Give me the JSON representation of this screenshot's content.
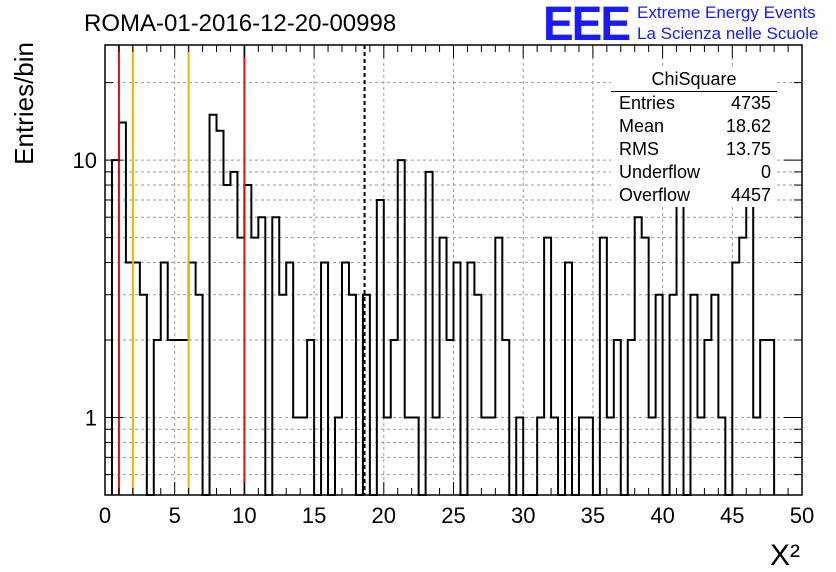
{
  "header": {
    "run_title": "ROMA-01-2016-12-20-00998",
    "logo_text": "EEE",
    "logo_line1": "Extreme Energy Events",
    "logo_line2": "La Scienza nelle Scuole",
    "logo_color": "#1a1aff"
  },
  "stats_box": {
    "title": "ChiSquare",
    "rows": [
      {
        "label": "Entries",
        "value": "4735"
      },
      {
        "label": "Mean",
        "value": "18.62"
      },
      {
        "label": "RMS",
        "value": "13.75"
      },
      {
        "label": "Underflow",
        "value": "0"
      },
      {
        "label": "Overflow",
        "value": "4457"
      }
    ]
  },
  "chart_data": {
    "type": "bar",
    "histogram_style": "step",
    "title": "ROMA-01-2016-12-20-00998",
    "xlabel": "X²",
    "ylabel": "Entries/bin",
    "x_scale": "linear",
    "y_scale": "log",
    "xlim": [
      0,
      50
    ],
    "ylim": [
      0.5,
      28
    ],
    "bin_width": 0.5,
    "x_ticks": [
      "0",
      "5",
      "10",
      "15",
      "20",
      "25",
      "30",
      "35",
      "40",
      "45",
      "50"
    ],
    "y_ticks": [
      "1",
      "10"
    ],
    "grid": true,
    "bin_lo": [
      0.5,
      1.0,
      1.5,
      2.0,
      2.5,
      3.0,
      3.5,
      4.0,
      4.5,
      5.0,
      5.5,
      6.0,
      6.5,
      7.0,
      7.5,
      8.0,
      8.5,
      9.0,
      9.5,
      10.0,
      10.5,
      11.0,
      11.5,
      12.0,
      12.5,
      13.0,
      13.5,
      14.0,
      14.5,
      15.0,
      15.5,
      16.0,
      16.5,
      17.0,
      17.5,
      18.0,
      18.5,
      19.0,
      19.5,
      20.0,
      20.5,
      21.0,
      21.5,
      22.0,
      22.5,
      23.0,
      23.5,
      24.0,
      24.5,
      25.0,
      25.5,
      26.0,
      26.5,
      27.0,
      27.5,
      28.0,
      28.5,
      29.0,
      29.5,
      30.0,
      30.5,
      31.0,
      31.5,
      32.0,
      32.5,
      33.0,
      33.5,
      34.0,
      34.5,
      35.0,
      35.5,
      36.0,
      36.5,
      37.0,
      37.5,
      38.0,
      38.5,
      39.0,
      39.5,
      40.0,
      40.5,
      41.0,
      41.5,
      42.0,
      42.5,
      43.0,
      43.5,
      44.0,
      44.5,
      45.0,
      45.5,
      46.0,
      46.5,
      47.0,
      47.5
    ],
    "values": [
      10,
      14,
      4,
      4,
      3,
      0,
      2,
      4,
      2,
      2,
      2,
      4,
      3,
      0,
      15,
      13,
      8,
      9,
      5,
      8,
      5,
      6,
      0,
      6,
      3,
      4,
      1,
      1,
      2,
      0,
      4,
      0,
      1,
      4,
      3,
      0,
      3,
      0,
      7,
      1,
      2,
      10,
      1,
      1,
      0,
      9,
      1,
      5,
      2,
      4,
      0,
      4,
      3,
      1,
      1,
      5,
      2,
      0,
      1,
      0,
      0,
      1,
      5,
      1,
      0,
      4,
      0,
      1,
      1,
      0,
      5,
      1,
      2,
      0,
      2,
      6,
      5,
      1,
      3,
      0,
      3,
      8,
      0,
      3,
      1,
      2,
      3,
      1,
      0,
      4,
      5,
      8,
      1,
      2,
      2
    ],
    "vertical_lines": [
      {
        "x": 1,
        "color": "#dd1010",
        "style": "solid"
      },
      {
        "x": 2,
        "color": "#f0b400",
        "style": "solid"
      },
      {
        "x": 6,
        "color": "#f0b400",
        "style": "solid"
      },
      {
        "x": 10,
        "color": "#dd1010",
        "style": "solid"
      },
      {
        "x": 18.62,
        "color": "#000000",
        "style": "dashed"
      }
    ]
  }
}
